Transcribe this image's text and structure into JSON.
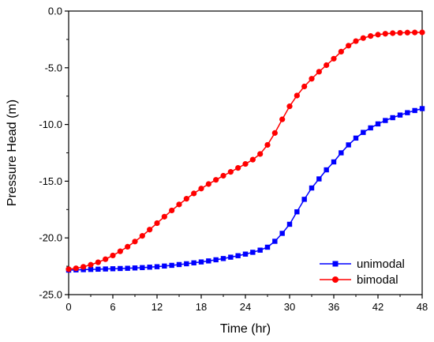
{
  "chart_data": {
    "type": "line",
    "title": "",
    "xlabel": "Time (hr)",
    "ylabel": "Pressure Head (m)",
    "xlim": [
      0,
      48
    ],
    "ylim": [
      -25,
      0
    ],
    "x_ticks": [
      0,
      6,
      12,
      18,
      24,
      30,
      36,
      42,
      48
    ],
    "y_ticks": [
      -25,
      -20,
      -15,
      -10,
      -5,
      0
    ],
    "x_tick_labels": [
      "0",
      "6",
      "12",
      "18",
      "24",
      "30",
      "36",
      "42",
      "48"
    ],
    "y_tick_labels": [
      "-25.0",
      "-20.0",
      "-15.0",
      "-10.0",
      "-5.0",
      "0.0"
    ],
    "grid": false,
    "legend_position": "bottom-right",
    "series": [
      {
        "name": "unimodal",
        "color": "#0000ff",
        "marker": "square",
        "x": [
          0,
          1,
          2,
          3,
          4,
          5,
          6,
          7,
          8,
          9,
          10,
          11,
          12,
          13,
          14,
          15,
          16,
          17,
          18,
          19,
          20,
          21,
          22,
          23,
          24,
          25,
          26,
          27,
          28,
          29,
          30,
          31,
          32,
          33,
          34,
          35,
          36,
          37,
          38,
          39,
          40,
          41,
          42,
          43,
          44,
          45,
          46,
          47,
          48
        ],
        "values": [
          -22.84,
          -22.82,
          -22.8,
          -22.78,
          -22.76,
          -22.74,
          -22.72,
          -22.7,
          -22.68,
          -22.65,
          -22.62,
          -22.58,
          -22.54,
          -22.48,
          -22.42,
          -22.35,
          -22.28,
          -22.2,
          -22.12,
          -22.03,
          -21.93,
          -21.82,
          -21.7,
          -21.57,
          -21.43,
          -21.27,
          -21.08,
          -20.82,
          -20.3,
          -19.6,
          -18.8,
          -17.7,
          -16.6,
          -15.6,
          -14.8,
          -14.0,
          -13.3,
          -12.5,
          -11.8,
          -11.2,
          -10.7,
          -10.3,
          -9.95,
          -9.65,
          -9.4,
          -9.17,
          -8.96,
          -8.77,
          -8.6
        ]
      },
      {
        "name": "bimodal",
        "color": "#ff0000",
        "marker": "circle",
        "x": [
          0,
          1,
          2,
          3,
          4,
          5,
          6,
          7,
          8,
          9,
          10,
          11,
          12,
          13,
          14,
          15,
          16,
          17,
          18,
          19,
          20,
          21,
          22,
          23,
          24,
          25,
          26,
          27,
          28,
          29,
          30,
          31,
          32,
          33,
          34,
          35,
          36,
          37,
          38,
          39,
          40,
          41,
          42,
          43,
          44,
          45,
          46,
          47,
          48
        ],
        "values": [
          -22.76,
          -22.68,
          -22.55,
          -22.37,
          -22.15,
          -21.88,
          -21.55,
          -21.18,
          -20.78,
          -20.32,
          -19.82,
          -19.27,
          -18.7,
          -18.13,
          -17.58,
          -17.05,
          -16.55,
          -16.08,
          -15.65,
          -15.25,
          -14.88,
          -14.52,
          -14.18,
          -13.83,
          -13.48,
          -13.1,
          -12.6,
          -11.8,
          -10.75,
          -9.55,
          -8.4,
          -7.45,
          -6.65,
          -5.97,
          -5.35,
          -4.77,
          -4.2,
          -3.58,
          -3.05,
          -2.65,
          -2.38,
          -2.2,
          -2.08,
          -2.0,
          -1.95,
          -1.92,
          -1.9,
          -1.89,
          -1.88
        ]
      }
    ]
  }
}
